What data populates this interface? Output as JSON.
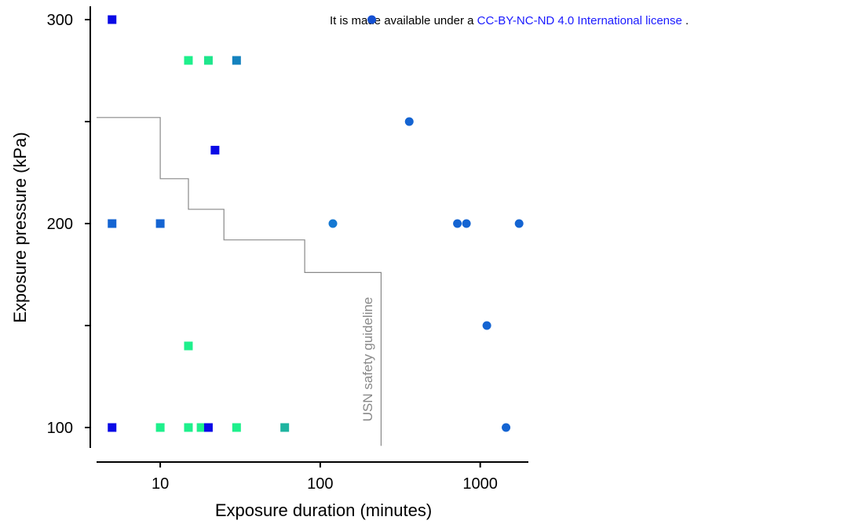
{
  "license": {
    "prefix": "It is made available under a",
    "link": "CC-BY-NC-ND 4.0 International license",
    "suffix": "."
  },
  "chart_data": {
    "type": "scatter",
    "title": "",
    "xlabel": "Exposure duration (minutes)",
    "ylabel": "Exposure pressure (kPa)",
    "xscale": "log",
    "xlim": [
      4,
      2000
    ],
    "ylim": [
      90,
      305
    ],
    "x_ticks": [
      10,
      100,
      1000
    ],
    "x_tick_labels": [
      "10",
      "100",
      "1000"
    ],
    "y_ticks": [
      100,
      150,
      200,
      250,
      300
    ],
    "y_tick_labels": [
      "100",
      "",
      "200",
      "",
      "300"
    ],
    "grid": false,
    "legend": "none",
    "guideline": {
      "label": "USN safety guideline",
      "color": "#888888",
      "points": [
        [
          4,
          252
        ],
        [
          10,
          252
        ],
        [
          10,
          222
        ],
        [
          15,
          222
        ],
        [
          15,
          207
        ],
        [
          25,
          207
        ],
        [
          25,
          192
        ],
        [
          80,
          192
        ],
        [
          80,
          176
        ],
        [
          240,
          176
        ],
        [
          240,
          91
        ]
      ]
    },
    "series": [
      {
        "marker": "square",
        "points": [
          {
            "x": 5,
            "y": 300,
            "color": "#0a0ae6"
          },
          {
            "x": 15,
            "y": 280,
            "color": "#1ef08c"
          },
          {
            "x": 20,
            "y": 280,
            "color": "#1ee68c"
          },
          {
            "x": 30,
            "y": 280,
            "color": "#1482be"
          },
          {
            "x": 22,
            "y": 236,
            "color": "#0a0ae6"
          },
          {
            "x": 5,
            "y": 200,
            "color": "#1464d2"
          },
          {
            "x": 10,
            "y": 200,
            "color": "#1464d2"
          },
          {
            "x": 15,
            "y": 140,
            "color": "#1ef08c"
          },
          {
            "x": 5,
            "y": 100,
            "color": "#0a0ae6"
          },
          {
            "x": 10,
            "y": 100,
            "color": "#1ef08c"
          },
          {
            "x": 15,
            "y": 100,
            "color": "#1ef08c"
          },
          {
            "x": 18,
            "y": 100,
            "color": "#1ef08c"
          },
          {
            "x": 20,
            "y": 100,
            "color": "#0a0ae6"
          },
          {
            "x": 30,
            "y": 100,
            "color": "#1ef08c"
          },
          {
            "x": 60,
            "y": 100,
            "color": "#1eb4a0"
          }
        ]
      },
      {
        "marker": "circle",
        "points": [
          {
            "x": 210,
            "y": 300,
            "color": "#1450d2"
          },
          {
            "x": 360,
            "y": 250,
            "color": "#1464d2"
          },
          {
            "x": 120,
            "y": 200,
            "color": "#1478d2"
          },
          {
            "x": 720,
            "y": 200,
            "color": "#1464d2"
          },
          {
            "x": 820,
            "y": 200,
            "color": "#1464d2"
          },
          {
            "x": 1750,
            "y": 200,
            "color": "#1464d2"
          },
          {
            "x": 1100,
            "y": 150,
            "color": "#1464d2"
          },
          {
            "x": 1450,
            "y": 100,
            "color": "#1464d2"
          }
        ]
      }
    ]
  }
}
